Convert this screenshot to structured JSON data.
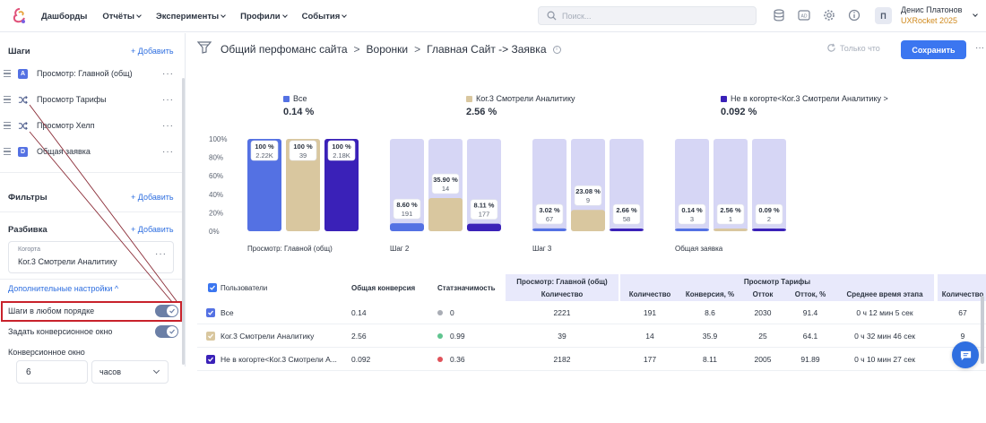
{
  "colors": {
    "accent": "#3b76f0",
    "series_all": "#5471e3",
    "series_cohort": "#d9c79f",
    "series_not_cohort": "#3a21b8",
    "bar_bg": "#d6d6f5",
    "highlight": "#c8222b"
  },
  "topnav": {
    "menu": [
      {
        "label": "Дашборды",
        "dropdown": false
      },
      {
        "label": "Отчёты",
        "dropdown": true
      },
      {
        "label": "Эксперименты",
        "dropdown": true
      },
      {
        "label": "Профили",
        "dropdown": true
      },
      {
        "label": "События",
        "dropdown": true
      }
    ],
    "search_placeholder": "Поиск...",
    "icons": [
      "database-icon",
      "ad-icon",
      "settings-gear-icon",
      "info-icon"
    ],
    "avatar_letter": "П",
    "user_name": "Денис Платонов",
    "company": "UXRocket 2025"
  },
  "sidebar": {
    "steps_title": "Шаги",
    "add_label": "+ Добавить",
    "steps": [
      {
        "badge": "A",
        "type": "letter",
        "label": "Просмотр: Главной (общ)"
      },
      {
        "badge": "",
        "type": "shuffle",
        "label": "Просмотр Тарифы"
      },
      {
        "badge": "",
        "type": "shuffle",
        "label": "Просмотр Хелп"
      },
      {
        "badge": "D",
        "type": "letter",
        "label": "Общая заявка"
      }
    ],
    "filters_title": "Фильтры",
    "breakdown_title": "Разбивка",
    "cohort_caption": "Когорта",
    "cohort_value": "Ког.3 Смотрели Аналитику",
    "more_settings": "Дополнительные настройки ^",
    "any_order_label": "Шаги в любом порядке",
    "conversion_window_toggle": "Задать конверсионное окно",
    "conversion_window_caption": "Конверсионное окно",
    "window_value": "6",
    "window_unit": "часов"
  },
  "header": {
    "breadcrumb": [
      "Общий перфоманс сайта",
      "Воронки",
      "Главная Сайт -> Заявка"
    ],
    "refresh_label": "Только что",
    "save_label": "Сохранить"
  },
  "legend": [
    {
      "name": "Все",
      "value": "0.14 %"
    },
    {
      "name": "Ког.3 Смотрели Аналитику",
      "value": "2.56 %"
    },
    {
      "name": "Не в когорте<Ког.3 Смотрели Аналитику >",
      "value": "0.092 %"
    }
  ],
  "chart_data": {
    "type": "bar",
    "y_ticks": [
      "100%",
      "80%",
      "60%",
      "40%",
      "20%",
      "0%"
    ],
    "ylim": [
      0,
      100
    ],
    "categories": [
      "Просмотр: Главной (общ)",
      "Шаг 2",
      "Шаг 3",
      "Общая заявка"
    ],
    "series": [
      {
        "name": "Все",
        "values": [
          100,
          8.6,
          3.02,
          0.14
        ],
        "labels": [
          "100 %",
          "8.60 %",
          "3.02 %",
          "0.14 %"
        ],
        "counts": [
          "2.22K",
          "191",
          "67",
          "3"
        ]
      },
      {
        "name": "Ког.3 Смотрели Аналитику",
        "values": [
          100,
          35.9,
          23.08,
          2.56
        ],
        "labels": [
          "100 %",
          "35.90 %",
          "23.08 %",
          "2.56 %"
        ],
        "counts": [
          "39",
          "14",
          "9",
          "1"
        ]
      },
      {
        "name": "Не в когорте<Ког.3 Смотрели Аналитику >",
        "values": [
          100,
          8.11,
          2.66,
          0.09
        ],
        "labels": [
          "100 %",
          "8.11 %",
          "2.66 %",
          "0.09 %"
        ],
        "counts": [
          "2.18K",
          "177",
          "58",
          "2"
        ]
      }
    ]
  },
  "table": {
    "col_users": "Пользователи",
    "col_overall": "Общая конверсия",
    "col_stat": "Статзначимость",
    "group1": "Просмотр: Главной (общ)",
    "group2": "Просмотр Тарифы",
    "sub_count": "Количество",
    "sub_count2": "Количество",
    "sub_conv": "Конверсия, %",
    "sub_churn": "Отток",
    "sub_churn_pct": "Отток, %",
    "sub_avg_time": "Среднее время этапа",
    "sub_count3": "Количество",
    "rows": [
      {
        "name": "Все",
        "overall": "0.14",
        "stat": "0",
        "stat_color": "#a9adb5",
        "c1": "2221",
        "c2": "191",
        "conv": "8.6",
        "churn": "2030",
        "churn_pct": "91.4",
        "avg": "0 ч 12 мин 5 сек",
        "c3": "67",
        "check_color": "#5471e3"
      },
      {
        "name": "Ког.3 Смотрели Аналитику",
        "overall": "2.56",
        "stat": "0.99",
        "stat_color": "#5fc48f",
        "c1": "39",
        "c2": "14",
        "conv": "35.9",
        "churn": "25",
        "churn_pct": "64.1",
        "avg": "0 ч 32 мин 46 сек",
        "c3": "9",
        "check_color": "#d9c79f"
      },
      {
        "name": "Не в когорте<Ког.3 Смотрели А...",
        "overall": "0.092",
        "stat": "0.36",
        "stat_color": "#e0525a",
        "c1": "2182",
        "c2": "177",
        "conv": "8.11",
        "churn": "2005",
        "churn_pct": "91.89",
        "avg": "0 ч 10 мин 27 сек",
        "c3": "58",
        "check_color": "#3a21b8"
      }
    ]
  }
}
